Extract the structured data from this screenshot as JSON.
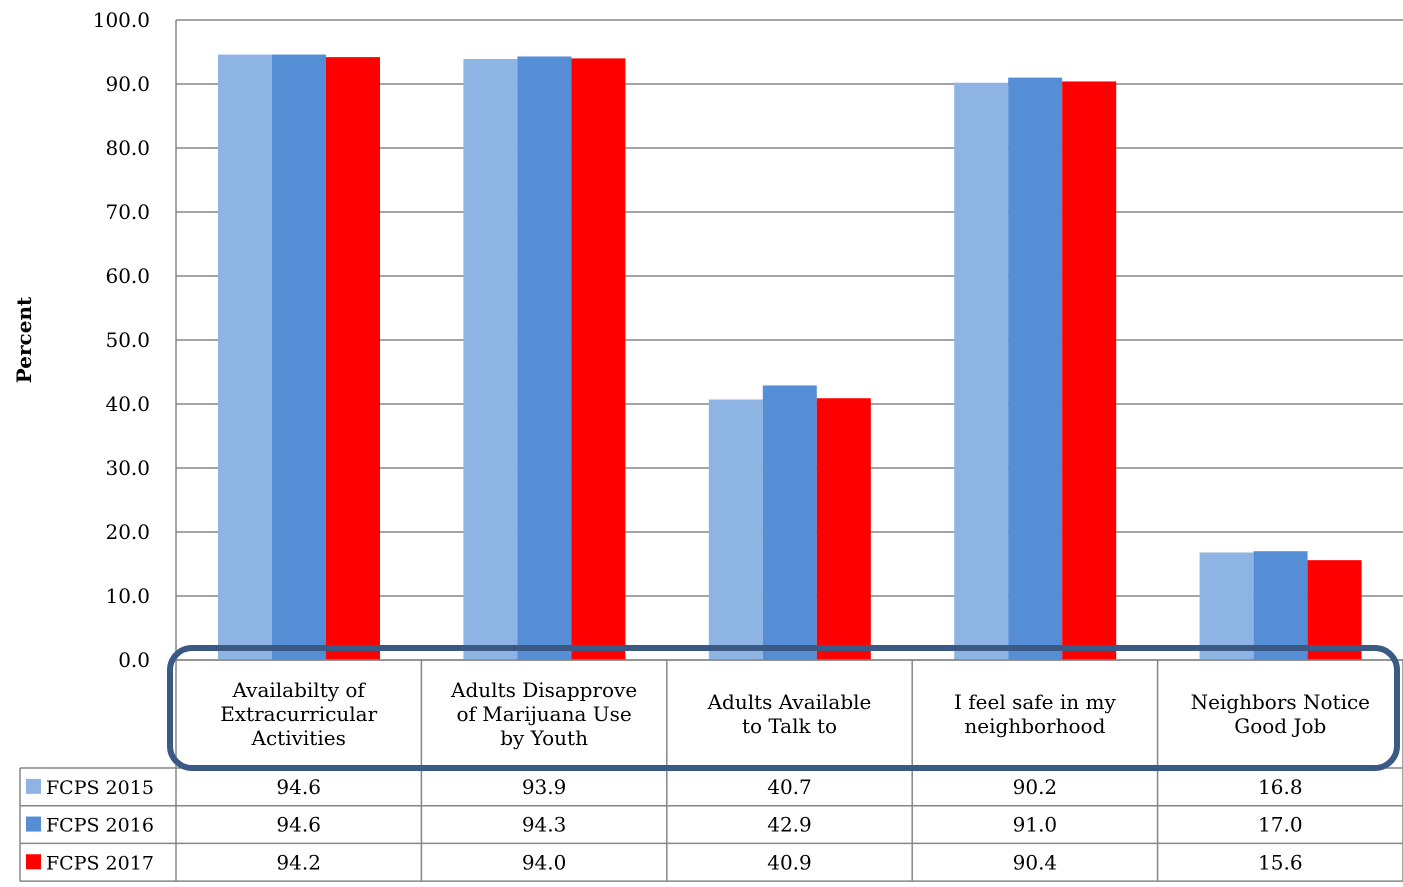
{
  "chart_data": {
    "type": "bar",
    "ylabel": "Percent",
    "ylim": [
      0,
      100
    ],
    "yticks": [
      "0.0",
      "10.0",
      "20.0",
      "30.0",
      "40.0",
      "50.0",
      "60.0",
      "70.0",
      "80.0",
      "90.0",
      "100.0"
    ],
    "grid": true,
    "legend": "data-table",
    "categories": [
      "Availabilty of Extracurricular Activities",
      "Adults Disapprove of Marijuana Use by Youth",
      "Adults Available to Talk to",
      "I feel safe in my neighborhood",
      "Neighbors Notice Good Job"
    ],
    "category_lines": [
      [
        "Availabilty of",
        "Extracurricular",
        "Activities"
      ],
      [
        "Adults Disapprove",
        "of Marijuana Use",
        "by Youth"
      ],
      [
        "Adults Available",
        "to Talk to"
      ],
      [
        "I feel safe in my",
        "neighborhood"
      ],
      [
        "Neighbors Notice",
        "Good Job"
      ]
    ],
    "series": [
      {
        "name": "FCPS 2015",
        "color": "#8EB4E3",
        "values": [
          94.6,
          93.9,
          40.7,
          90.2,
          16.8
        ],
        "labels": [
          "94.6",
          "93.9",
          "40.7",
          "90.2",
          "16.8"
        ]
      },
      {
        "name": "FCPS 2016",
        "color": "#558ED5",
        "values": [
          94.6,
          94.3,
          42.9,
          91.0,
          17.0
        ],
        "labels": [
          "94.6",
          "94.3",
          "42.9",
          "91.0",
          "17.0"
        ]
      },
      {
        "name": "FCPS 2017",
        "color": "#FF0000",
        "values": [
          94.2,
          94.0,
          40.9,
          90.4,
          15.6
        ],
        "labels": [
          "94.2",
          "94.0",
          "40.9",
          "90.4",
          "15.6"
        ]
      }
    ],
    "highlight_color": "#3A5A85"
  }
}
